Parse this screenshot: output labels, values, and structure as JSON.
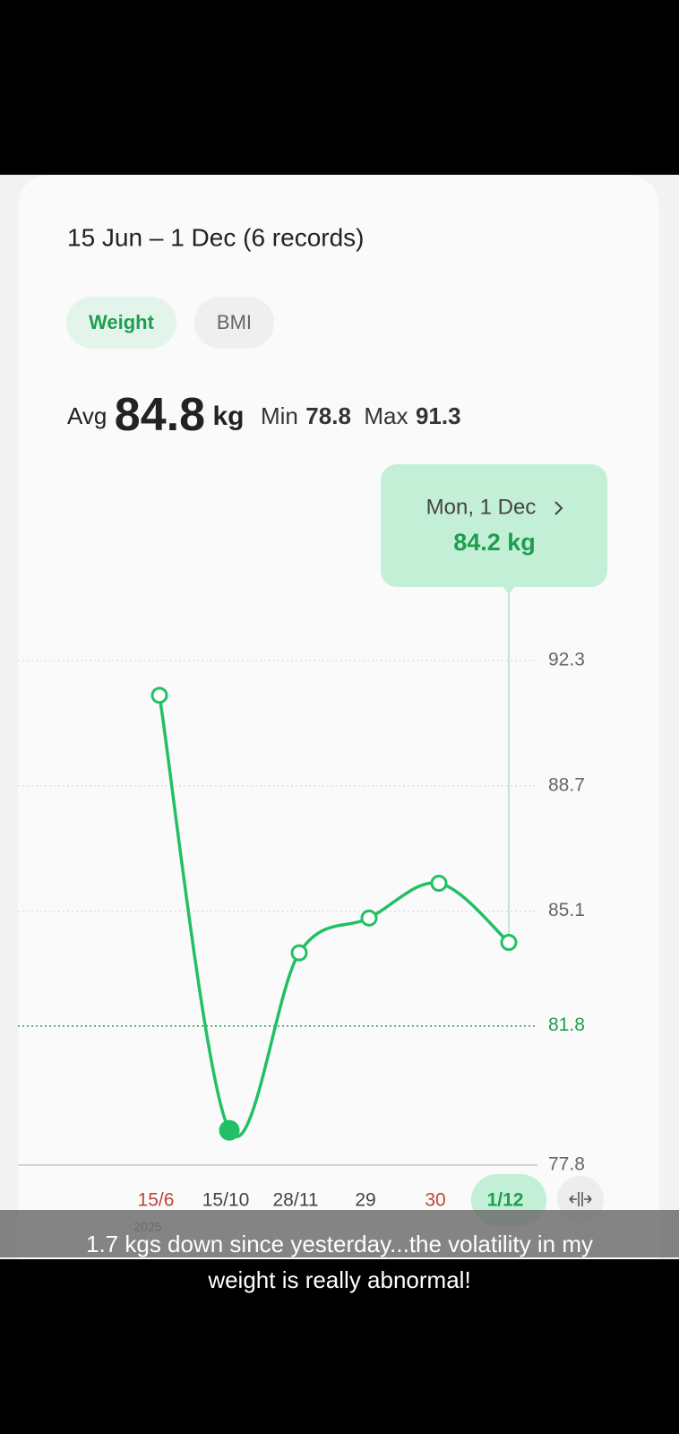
{
  "header": {
    "range": "15 Jun – 1 Dec (6 records)"
  },
  "tabs": [
    {
      "label": "Weight",
      "active": true
    },
    {
      "label": "BMI",
      "active": false
    }
  ],
  "summary": {
    "avg_label": "Avg",
    "avg": "84.8",
    "unit": "kg",
    "min_label": "Min",
    "min": "78.8",
    "max_label": "Max",
    "max": "91.3"
  },
  "tooltip": {
    "title": "Mon, 1 Dec",
    "value": "84.2 kg"
  },
  "chart_data": {
    "type": "line",
    "categories": [
      "15/6",
      "15/10",
      "28/11",
      "29",
      "30",
      "1/12"
    ],
    "category_colors": [
      "#c0453a",
      "#444444",
      "#444444",
      "#444444",
      "#c0453a",
      "#1e9e50"
    ],
    "year_label": "2025",
    "values": [
      91.3,
      78.8,
      83.9,
      84.9,
      85.9,
      84.2
    ],
    "color": "#22c064",
    "ylim": [
      77.8,
      92.3
    ],
    "yticks": [
      77.8,
      85.1,
      88.7,
      92.3
    ],
    "target": 81.8,
    "target_color": "#1e9e50",
    "selected_index": 5,
    "grid": true
  },
  "caption": {
    "lines": [
      "1.7 kgs down since yesterday...the volatility in my",
      "weight is really abnormal!"
    ]
  }
}
